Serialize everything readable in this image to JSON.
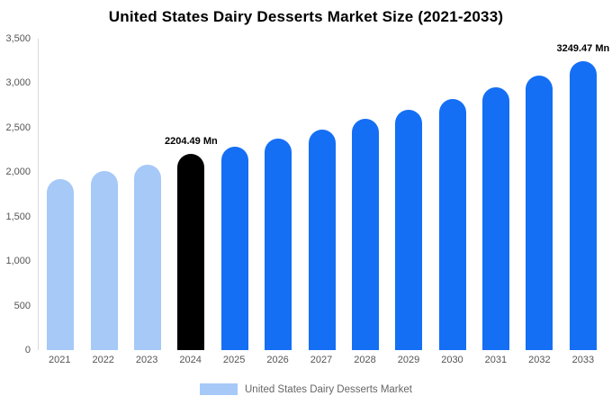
{
  "chart_data": {
    "type": "bar",
    "title": "United States Dairy Desserts Market Size (2021-2033)",
    "unit": "Mn",
    "xlabel": "",
    "ylabel": "",
    "ylim": [
      0,
      3500
    ],
    "grid": false,
    "legend_position": "bottom-center",
    "yticks": [
      {
        "value": 0,
        "label": "0"
      },
      {
        "value": 500,
        "label": "500"
      },
      {
        "value": 1000,
        "label": "1,000"
      },
      {
        "value": 1500,
        "label": "1,500"
      },
      {
        "value": 2000,
        "label": "2,000"
      },
      {
        "value": 2500,
        "label": "2,500"
      },
      {
        "value": 3000,
        "label": "3,000"
      },
      {
        "value": 3500,
        "label": "3,500"
      }
    ],
    "bars": [
      {
        "year": "2021",
        "value": 1920,
        "color": "#a6c9f7"
      },
      {
        "year": "2022",
        "value": 2010,
        "color": "#a6c9f7"
      },
      {
        "year": "2023",
        "value": 2085,
        "color": "#a6c9f7"
      },
      {
        "year": "2024",
        "value": 2204.49,
        "color": "#000000",
        "annotation": "2204.49 Mn"
      },
      {
        "year": "2025",
        "value": 2285,
        "color": "#146ff5"
      },
      {
        "year": "2026",
        "value": 2375,
        "color": "#146ff5"
      },
      {
        "year": "2027",
        "value": 2480,
        "color": "#146ff5"
      },
      {
        "year": "2028",
        "value": 2600,
        "color": "#146ff5"
      },
      {
        "year": "2029",
        "value": 2700,
        "color": "#146ff5"
      },
      {
        "year": "2030",
        "value": 2820,
        "color": "#146ff5"
      },
      {
        "year": "2031",
        "value": 2950,
        "color": "#146ff5"
      },
      {
        "year": "2032",
        "value": 3085,
        "color": "#146ff5"
      },
      {
        "year": "2033",
        "value": 3249.47,
        "color": "#146ff5",
        "annotation": "3249.47 Mn"
      }
    ],
    "colors": {
      "historical_bar": "#a6c9f7",
      "base_year_bar": "#000000",
      "forecast_bar": "#146ff5",
      "axis_text": "#555555",
      "axis_line": "#d9d9d9"
    },
    "legend": {
      "label": "United States Dairy Desserts Market",
      "swatch_color": "#a6c9f7"
    }
  }
}
